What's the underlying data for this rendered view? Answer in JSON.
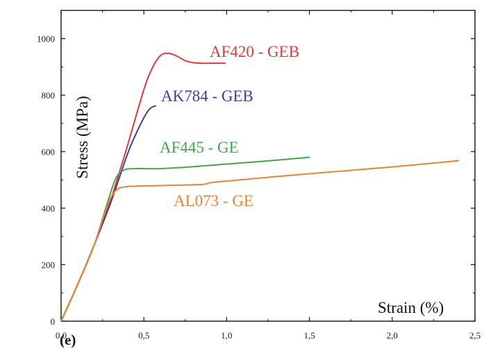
{
  "chart_data": {
    "type": "line",
    "panel_label": "(e)",
    "xlabel": "Strain (%)",
    "ylabel": "Stress (MPa)",
    "xlim": [
      0,
      2.5
    ],
    "ylim": [
      0,
      1100
    ],
    "xticks": [
      0.0,
      0.5,
      1.0,
      1.5,
      2.0,
      2.5
    ],
    "xtick_labels": [
      "0,0",
      "0,5",
      "1,0",
      "1,5",
      "2,0",
      "2,5"
    ],
    "yticks": [
      0,
      200,
      400,
      600,
      800,
      1000
    ],
    "ytick_labels": [
      "0",
      "200",
      "400",
      "600",
      "800",
      "1000"
    ],
    "grid": false,
    "legend": "none",
    "series": [
      {
        "name": "AF420 - GEB",
        "color": "#e0393b",
        "x": [
          0,
          0.1,
          0.2,
          0.3,
          0.4,
          0.5,
          0.55,
          0.6,
          0.65,
          0.7,
          0.75,
          0.8,
          0.85,
          0.9,
          0.95,
          0.99
        ],
        "y": [
          0,
          130,
          270,
          430,
          620,
          820,
          895,
          940,
          948,
          938,
          922,
          915,
          913,
          913,
          913,
          913
        ]
      },
      {
        "name": "AK784 - GEB",
        "color": "#3a3ea6",
        "x": [
          0,
          0.1,
          0.2,
          0.3,
          0.4,
          0.45,
          0.5,
          0.53,
          0.55,
          0.57
        ],
        "y": [
          0,
          130,
          270,
          420,
          590,
          660,
          720,
          748,
          758,
          762
        ]
      },
      {
        "name": "AF445 - GE",
        "color": "#3fa84a",
        "x": [
          0,
          0.1,
          0.2,
          0.28,
          0.33,
          0.38,
          0.45,
          0.6,
          0.8,
          1.0,
          1.2,
          1.5
        ],
        "y": [
          0,
          130,
          270,
          420,
          505,
          535,
          540,
          540,
          547,
          556,
          565,
          580
        ]
      },
      {
        "name": "AL073 - GE",
        "color": "#ee8033",
        "x": [
          0,
          0.1,
          0.2,
          0.28,
          0.33,
          0.38,
          0.45,
          0.6,
          0.85,
          0.9,
          1.0,
          1.5,
          2.0,
          2.4
        ],
        "y": [
          0,
          130,
          270,
          410,
          462,
          475,
          478,
          480,
          484,
          490,
          496,
          522,
          546,
          568
        ]
      }
    ]
  }
}
